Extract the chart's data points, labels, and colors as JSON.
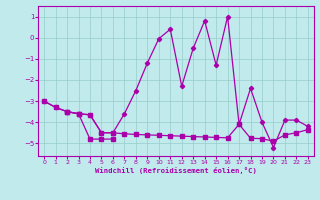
{
  "xlabel": "Windchill (Refroidissement éolien,°C)",
  "xlim": [
    -0.5,
    23.5
  ],
  "ylim": [
    -5.6,
    1.5
  ],
  "yticks": [
    1,
    0,
    -1,
    -2,
    -3,
    -4,
    -5
  ],
  "xticks": [
    0,
    1,
    2,
    3,
    4,
    5,
    6,
    7,
    8,
    9,
    10,
    11,
    12,
    13,
    14,
    15,
    16,
    17,
    18,
    19,
    20,
    21,
    22,
    23
  ],
  "background_color": "#c0eaec",
  "grid_color": "#99cccc",
  "line_color": "#aa00aa",
  "line1_x": [
    0,
    1,
    2,
    3,
    4,
    5,
    6,
    7,
    8,
    9,
    10,
    11,
    12,
    13,
    14,
    15,
    16,
    17,
    18,
    19,
    20,
    21,
    22,
    23
  ],
  "line1_y": [
    -3.0,
    -3.3,
    -3.5,
    -3.6,
    -3.65,
    -4.5,
    -4.5,
    -3.6,
    -2.5,
    -1.2,
    -0.05,
    0.4,
    -2.3,
    -0.5,
    0.8,
    -1.3,
    1.0,
    -4.1,
    -2.4,
    -4.0,
    -5.2,
    -3.9,
    -3.9,
    -4.2
  ],
  "line2_x": [
    0,
    1,
    2,
    3,
    4,
    5,
    6,
    7,
    8,
    9,
    10,
    11,
    12,
    13,
    14,
    15,
    16,
    17,
    18,
    19,
    20,
    21,
    22,
    23
  ],
  "line2_y": [
    -3.0,
    -3.3,
    -3.5,
    -3.6,
    -3.65,
    -4.5,
    -4.5,
    -4.55,
    -4.58,
    -4.6,
    -4.62,
    -4.64,
    -4.66,
    -4.68,
    -4.7,
    -4.72,
    -4.74,
    -4.1,
    -4.76,
    -4.78,
    -4.9,
    -4.6,
    -4.5,
    -4.35
  ],
  "line3_x": [
    2,
    3,
    4,
    5,
    6
  ],
  "line3_y": [
    -3.5,
    -3.6,
    -4.8,
    -4.8,
    -4.8
  ]
}
